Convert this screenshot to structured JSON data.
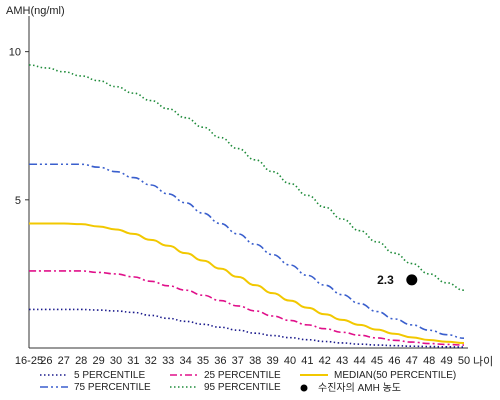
{
  "chart_data": {
    "type": "line",
    "ylabel": "AMH(ng/ml)",
    "xlabel": "나이",
    "ylim": [
      0,
      11
    ],
    "yticks": [
      5,
      10
    ],
    "grid": false,
    "legend_position": "bottom",
    "categories": [
      "16-25",
      "26",
      "27",
      "28",
      "29",
      "30",
      "31",
      "32",
      "33",
      "34",
      "35",
      "36",
      "37",
      "38",
      "39",
      "40",
      "41",
      "42",
      "43",
      "44",
      "45",
      "46",
      "47",
      "48",
      "49",
      "50"
    ],
    "series": [
      {
        "name": "5 PERCENTILE",
        "color": "#1a1a8c",
        "style": "dotted",
        "values": [
          1.3,
          1.3,
          1.3,
          1.3,
          1.28,
          1.25,
          1.2,
          1.1,
          1.0,
          0.9,
          0.8,
          0.7,
          0.6,
          0.5,
          0.42,
          0.35,
          0.28,
          0.22,
          0.17,
          0.13,
          0.1,
          0.08,
          0.06,
          0.05,
          0.04,
          0.03
        ]
      },
      {
        "name": "25 PERCENTILE",
        "color": "#e0108a",
        "style": "dashdot",
        "values": [
          2.6,
          2.6,
          2.6,
          2.6,
          2.55,
          2.5,
          2.4,
          2.25,
          2.1,
          1.95,
          1.78,
          1.6,
          1.42,
          1.25,
          1.08,
          0.93,
          0.78,
          0.65,
          0.53,
          0.43,
          0.34,
          0.26,
          0.2,
          0.15,
          0.12,
          0.1
        ]
      },
      {
        "name": "MEDIAN(50 PERCENTILE)",
        "color": "#f2c800",
        "style": "solid",
        "values": [
          4.2,
          4.2,
          4.2,
          4.18,
          4.1,
          4.0,
          3.85,
          3.65,
          3.45,
          3.2,
          2.95,
          2.68,
          2.4,
          2.12,
          1.85,
          1.6,
          1.36,
          1.14,
          0.95,
          0.78,
          0.62,
          0.48,
          0.36,
          0.27,
          0.21,
          0.17
        ]
      },
      {
        "name": "75 PERCENTILE",
        "color": "#3a5fcd",
        "style": "dashdotdot",
        "values": [
          6.2,
          6.2,
          6.2,
          6.2,
          6.1,
          5.95,
          5.75,
          5.5,
          5.2,
          4.9,
          4.55,
          4.2,
          3.85,
          3.5,
          3.15,
          2.8,
          2.45,
          2.12,
          1.8,
          1.5,
          1.23,
          0.98,
          0.78,
          0.6,
          0.45,
          0.33
        ]
      },
      {
        "name": "95 PERCENTILE",
        "color": "#1e8b3a",
        "style": "dotted",
        "values": [
          9.55,
          9.45,
          9.32,
          9.18,
          9.02,
          8.82,
          8.6,
          8.35,
          8.07,
          7.77,
          7.45,
          7.1,
          6.73,
          6.35,
          5.95,
          5.55,
          5.15,
          4.75,
          4.35,
          3.96,
          3.58,
          3.2,
          2.85,
          2.5,
          2.2,
          1.95
        ]
      }
    ],
    "points": [
      {
        "name": "수진자의 AMH 농도",
        "x": "47",
        "y": 2.3,
        "label": "2.3",
        "color": "#000000"
      }
    ]
  }
}
